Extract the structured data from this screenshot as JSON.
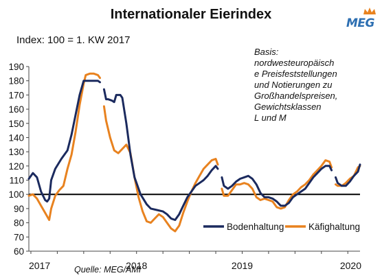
{
  "header": {
    "title": "Internationaler Eierindex",
    "subtitle": "Index: 100 = 1. KW 2017",
    "logo_text": "MEG"
  },
  "annotation": {
    "basis": "Basis:\nnordwesteuropäisch\ne Preisfeststellungen\nund Notierungen zu\nGroßhandelspreisen,\nGewichtsklassen\nL und M"
  },
  "source": "Quelle: MEG/AMI",
  "colors": {
    "bodenhaltung": "#1b2a5e",
    "kaefighaltung": "#e8821f",
    "reference_line": "#000000",
    "logo": "#2d6fb2",
    "logo_crown": "#e8821f"
  },
  "chart_data": {
    "type": "line",
    "x_unit": "calendar week",
    "x_ticks": [
      {
        "label": "2017",
        "week": 1
      },
      {
        "label": "2018",
        "week": 53
      },
      {
        "label": "2019",
        "week": 105
      },
      {
        "label": "2020",
        "week": 157
      }
    ],
    "ylim": [
      60,
      190
    ],
    "yticks": [
      60,
      70,
      80,
      90,
      100,
      110,
      120,
      130,
      140,
      150,
      160,
      170,
      180,
      190
    ],
    "reference_value": 100,
    "legend_position": "bottom-right",
    "series": [
      {
        "name": "Bodenhaltung",
        "key": "bodenhaltung",
        "segments": [
          [
            [
              0,
              111
            ],
            [
              2,
              115
            ],
            [
              4,
              112
            ],
            [
              6,
              102
            ],
            [
              8,
              96
            ],
            [
              9,
              95
            ],
            [
              10,
              97
            ],
            [
              11,
              110
            ],
            [
              13,
              118
            ],
            [
              16,
              125
            ],
            [
              19,
              131
            ],
            [
              21,
              142
            ],
            [
              23,
              156
            ],
            [
              25,
              170
            ],
            [
              27,
              180
            ],
            [
              29,
              180
            ],
            [
              32,
              180
            ],
            [
              34,
              180
            ],
            [
              35,
              179
            ]
          ],
          [
            [
              37,
              174
            ],
            [
              38,
              167
            ],
            [
              39,
              167
            ],
            [
              41,
              166
            ],
            [
              42,
              165
            ],
            [
              43,
              170
            ],
            [
              45,
              170
            ],
            [
              46,
              168
            ],
            [
              48,
              150
            ],
            [
              50,
              128
            ],
            [
              52,
              112
            ],
            [
              55,
              100
            ],
            [
              58,
              93
            ],
            [
              60,
              90
            ],
            [
              63,
              89
            ],
            [
              66,
              88
            ],
            [
              68,
              86
            ],
            [
              70,
              83
            ],
            [
              72,
              82
            ],
            [
              74,
              86
            ],
            [
              76,
              92
            ],
            [
              78,
              98
            ],
            [
              80,
              102
            ],
            [
              82,
              106
            ],
            [
              84,
              108
            ],
            [
              86,
              110
            ],
            [
              88,
              113
            ],
            [
              90,
              117
            ],
            [
              92,
              120
            ],
            [
              93,
              118
            ]
          ],
          [
            [
              95,
              112
            ],
            [
              96,
              106
            ],
            [
              98,
              104
            ],
            [
              100,
              106
            ],
            [
              102,
              109
            ],
            [
              104,
              111
            ],
            [
              106,
              112
            ],
            [
              108,
              113
            ],
            [
              110,
              111
            ],
            [
              112,
              107
            ],
            [
              114,
              101
            ],
            [
              116,
              98
            ],
            [
              118,
              98
            ],
            [
              120,
              97
            ],
            [
              122,
              95
            ],
            [
              124,
              92
            ],
            [
              126,
              92
            ],
            [
              128,
              94
            ],
            [
              130,
              98
            ],
            [
              132,
              100
            ],
            [
              134,
              102
            ],
            [
              136,
              104
            ],
            [
              138,
              108
            ],
            [
              140,
              112
            ],
            [
              142,
              115
            ],
            [
              144,
              118
            ],
            [
              146,
              120
            ],
            [
              148,
              120
            ],
            [
              149,
              117
            ]
          ],
          [
            [
              151,
              112
            ],
            [
              152,
              108
            ],
            [
              154,
              106
            ],
            [
              156,
              106
            ],
            [
              158,
              109
            ],
            [
              160,
              113
            ],
            [
              162,
              116
            ],
            [
              163,
              121
            ]
          ]
        ]
      },
      {
        "name": "Käfighaltung",
        "key": "kaefighaltung",
        "segments": [
          [
            [
              0,
              99
            ],
            [
              2,
              100
            ],
            [
              4,
              97
            ],
            [
              6,
              92
            ],
            [
              8,
              87
            ],
            [
              10,
              82
            ],
            [
              11,
              90
            ],
            [
              13,
              99
            ],
            [
              15,
              103
            ],
            [
              17,
              106
            ],
            [
              19,
              118
            ],
            [
              21,
              128
            ],
            [
              23,
              144
            ],
            [
              25,
              163
            ],
            [
              27,
              178
            ],
            [
              28,
              184
            ],
            [
              30,
              185
            ],
            [
              32,
              185
            ],
            [
              34,
              184
            ],
            [
              35,
              182
            ]
          ],
          [
            [
              37,
              162
            ],
            [
              38,
              152
            ],
            [
              40,
              140
            ],
            [
              42,
              131
            ],
            [
              44,
              129
            ],
            [
              46,
              132
            ],
            [
              48,
              135
            ],
            [
              50,
              129
            ],
            [
              52,
              112
            ],
            [
              54,
              98
            ],
            [
              56,
              88
            ],
            [
              58,
              81
            ],
            [
              60,
              80
            ],
            [
              62,
              83
            ],
            [
              64,
              86
            ],
            [
              66,
              84
            ],
            [
              68,
              80
            ],
            [
              70,
              76
            ],
            [
              72,
              74
            ],
            [
              74,
              78
            ],
            [
              76,
              87
            ],
            [
              78,
              95
            ],
            [
              80,
              102
            ],
            [
              82,
              108
            ],
            [
              84,
              113
            ],
            [
              86,
              118
            ],
            [
              88,
              121
            ],
            [
              90,
              124
            ],
            [
              92,
              125
            ],
            [
              93,
              121
            ]
          ],
          [
            [
              95,
              104
            ],
            [
              96,
              99
            ],
            [
              98,
              99
            ],
            [
              100,
              103
            ],
            [
              102,
              107
            ],
            [
              104,
              107
            ],
            [
              106,
              108
            ],
            [
              108,
              107
            ],
            [
              110,
              104
            ],
            [
              112,
              98
            ],
            [
              114,
              96
            ],
            [
              116,
              97
            ],
            [
              118,
              96
            ],
            [
              120,
              95
            ],
            [
              122,
              91
            ],
            [
              124,
              90
            ],
            [
              126,
              91
            ],
            [
              128,
              96
            ],
            [
              130,
              100
            ],
            [
              132,
              102
            ],
            [
              134,
              105
            ],
            [
              136,
              107
            ],
            [
              138,
              110
            ],
            [
              140,
              114
            ],
            [
              142,
              117
            ],
            [
              144,
              120
            ],
            [
              146,
              124
            ],
            [
              148,
              123
            ],
            [
              149,
              119
            ]
          ],
          [
            [
              151,
              107
            ],
            [
              152,
              106
            ],
            [
              154,
              106
            ],
            [
              156,
              108
            ],
            [
              158,
              111
            ],
            [
              160,
              113
            ],
            [
              162,
              119
            ],
            [
              163,
              120
            ]
          ]
        ]
      }
    ]
  }
}
